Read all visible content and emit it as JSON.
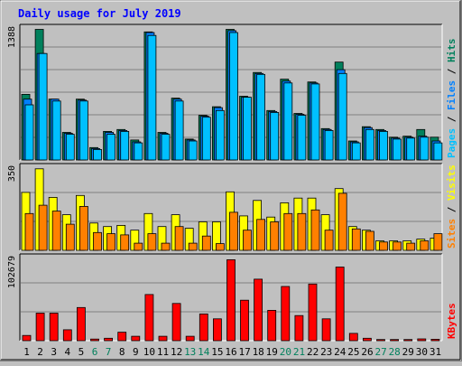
{
  "colors": {
    "background": "#c0c0c0",
    "plot_bg": "#c0c0c0",
    "grid": "#808080",
    "title": "#0000ff",
    "hits": "#00805c",
    "files": "#0080ff",
    "pages": "#00c0ff",
    "visits": "#ffff00",
    "sites": "#ff8000",
    "kbytes": "#ff0000",
    "weekend": "#00805c",
    "weekday": "#000000"
  },
  "chart_data": [
    {
      "type": "bar",
      "title": "Daily usage for July 2019",
      "ylabel_parts": [
        "Pages",
        "Files",
        "Hits"
      ],
      "ylabel_sep": " / ",
      "ymax_label": "1388",
      "ylim": [
        0,
        1388
      ],
      "grid": true,
      "categories": [
        "1",
        "2",
        "3",
        "4",
        "5",
        "6",
        "7",
        "8",
        "9",
        "10",
        "11",
        "12",
        "13",
        "14",
        "15",
        "16",
        "17",
        "18",
        "19",
        "20",
        "21",
        "22",
        "23",
        "24",
        "25",
        "26",
        "27",
        "28",
        "29",
        "30",
        "31"
      ],
      "weekend_days": [
        "6",
        "7",
        "13",
        "14",
        "20",
        "21",
        "27",
        "28"
      ],
      "series": [
        {
          "name": "Hits",
          "values": [
            690,
            1374,
            640,
            290,
            640,
            130,
            300,
            320,
            210,
            1347,
            290,
            650,
            220,
            470,
            560,
            1374,
            670,
            920,
            520,
            850,
            490,
            820,
            330,
            1030,
            200,
            350,
            320,
            240,
            250,
            320,
            240
          ]
        },
        {
          "name": "Files",
          "values": [
            640,
            1120,
            640,
            280,
            630,
            120,
            290,
            310,
            190,
            1340,
            280,
            640,
            210,
            460,
            550,
            1360,
            660,
            910,
            510,
            830,
            480,
            810,
            320,
            950,
            190,
            340,
            310,
            230,
            240,
            250,
            200
          ]
        },
        {
          "name": "Pages",
          "values": [
            580,
            1120,
            620,
            270,
            620,
            110,
            270,
            300,
            180,
            1310,
            270,
            620,
            200,
            450,
            520,
            1340,
            660,
            900,
            500,
            810,
            470,
            800,
            310,
            910,
            180,
            320,
            300,
            220,
            230,
            240,
            180
          ]
        }
      ]
    },
    {
      "type": "bar",
      "ylabel_parts": [
        "Sites",
        "Visits"
      ],
      "ylabel_sep": " / ",
      "ymax_label": "350",
      "ylim": [
        0,
        350
      ],
      "grid": true,
      "categories": [
        "1",
        "2",
        "3",
        "4",
        "5",
        "6",
        "7",
        "8",
        "9",
        "10",
        "11",
        "12",
        "13",
        "14",
        "15",
        "16",
        "17",
        "18",
        "19",
        "20",
        "21",
        "22",
        "23",
        "24",
        "25",
        "26",
        "27",
        "28",
        "29",
        "30",
        "31"
      ],
      "series": [
        {
          "name": "Visits",
          "values": [
            244,
            343,
            223,
            150,
            231,
            115,
            100,
            105,
            85,
            155,
            100,
            150,
            93,
            120,
            120,
            246,
            145,
            210,
            140,
            200,
            220,
            220,
            150,
            260,
            100,
            85,
            40,
            40,
            40,
            47,
            51
          ]
        },
        {
          "name": "Sites",
          "values": [
            155,
            190,
            165,
            110,
            185,
            75,
            70,
            65,
            30,
            70,
            30,
            100,
            30,
            60,
            28,
            160,
            85,
            130,
            120,
            155,
            155,
            170,
            85,
            240,
            90,
            80,
            35,
            35,
            30,
            40,
            70
          ]
        }
      ]
    },
    {
      "type": "bar",
      "ylabel_parts": [
        "KBytes"
      ],
      "ymax_label": "102679",
      "ylim": [
        0,
        102679
      ],
      "grid": true,
      "categories": [
        "1",
        "2",
        "3",
        "4",
        "5",
        "6",
        "7",
        "8",
        "9",
        "10",
        "11",
        "12",
        "13",
        "14",
        "15",
        "16",
        "17",
        "18",
        "19",
        "20",
        "21",
        "22",
        "23",
        "24",
        "25",
        "26",
        "27",
        "28",
        "29",
        "30",
        "31"
      ],
      "series": [
        {
          "name": "KBytes",
          "values": [
            6500,
            34000,
            34000,
            13500,
            41000,
            2000,
            3000,
            10500,
            5500,
            57000,
            5500,
            46000,
            5500,
            33000,
            27000,
            100000,
            50000,
            76000,
            37500,
            67000,
            31000,
            70000,
            27000,
            91000,
            9000,
            3000,
            1500,
            1500,
            1500,
            2200,
            1800
          ]
        }
      ]
    }
  ]
}
